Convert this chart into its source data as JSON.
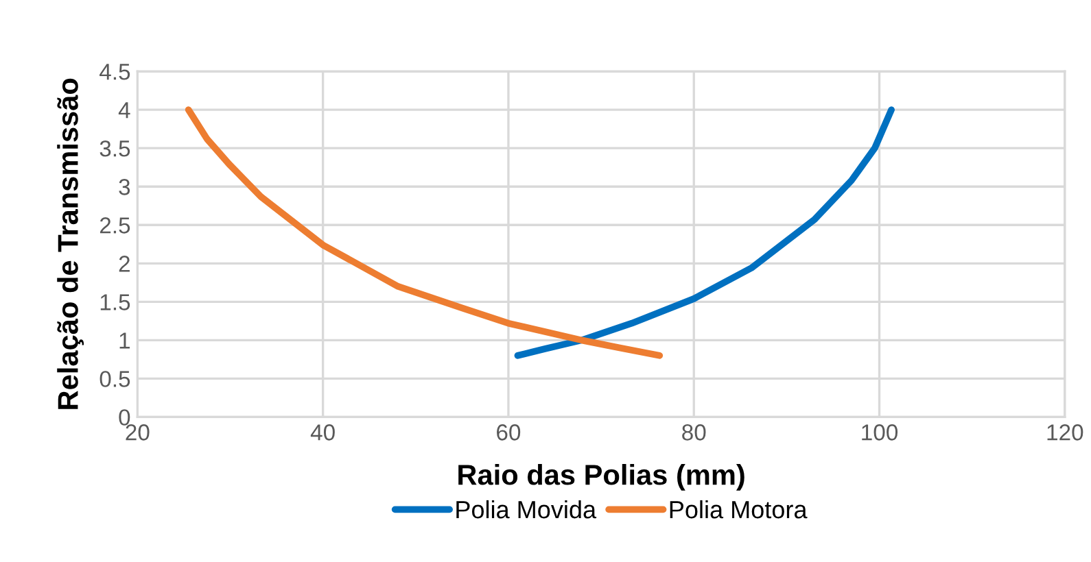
{
  "chart_data": {
    "type": "line",
    "xlabel": "Raio das Polias (mm)",
    "ylabel": "Relação de Transmissão",
    "xlim": [
      20,
      120
    ],
    "xticks": [
      20,
      40,
      60,
      80,
      100,
      120
    ],
    "ylim": [
      0,
      4.5
    ],
    "yticks": [
      0,
      0.5,
      1,
      1.5,
      2,
      2.5,
      3,
      3.5,
      4,
      4.5
    ],
    "grid": true,
    "legend": "bottom",
    "marker": "none",
    "line_style": "solid",
    "series": [
      {
        "name": "Polia Movida",
        "color": "#0070c0",
        "x": [
          61,
          64,
          67.9,
          73.3,
          80,
          86.2,
          93,
          97,
          99.5,
          101.3
        ],
        "values": [
          0.8,
          0.89,
          1.0,
          1.22,
          1.54,
          1.94,
          2.57,
          3.08,
          3.5,
          4
        ]
      },
      {
        "name": "Polia Motora",
        "color": "#ed7d31",
        "x": [
          25.5,
          27.5,
          29.9,
          33.3,
          40,
          48.1,
          55,
          60,
          67.9,
          72,
          76.3
        ],
        "values": [
          4,
          3.62,
          3.29,
          2.87,
          2.24,
          1.7,
          1.42,
          1.22,
          1.0,
          0.9,
          0.8
        ]
      }
    ]
  }
}
